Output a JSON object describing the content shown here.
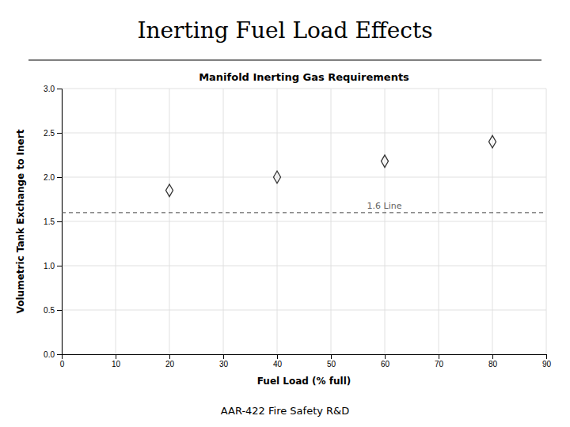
{
  "chart_data": {
    "type": "scatter",
    "title": "Inerting Fuel Load Effects",
    "subtitle": "Manifold Inerting Gas Requirements",
    "x_label": "Fuel Load (% full)",
    "y_label": "Volumetric Tank Exchange to Inert",
    "x": [
      20,
      40,
      60,
      80
    ],
    "values": [
      1.85,
      2.0,
      2.18,
      2.4
    ],
    "color": "#333333",
    "marker": "diamond",
    "xlim": [
      0,
      90
    ],
    "ylim": [
      0,
      3
    ],
    "xticks": [
      0,
      10,
      20,
      30,
      40,
      50,
      60,
      70,
      80,
      90
    ],
    "yticks": [
      {
        "value": 0,
        "label": "0.0"
      },
      0.5,
      {
        "value": 1.0,
        "label": "1.0"
      },
      1.5,
      {
        "value": 2.0,
        "label": "2.0"
      },
      2.5,
      {
        "value": 3.0,
        "label": "3.0"
      }
    ],
    "grid": true,
    "annotations": [
      {
        "type": "hline",
        "y": 1.6,
        "text": "1.6 Line",
        "color": "#666666"
      }
    ],
    "footer": "AAR-422 Fire Safety R&D"
  }
}
